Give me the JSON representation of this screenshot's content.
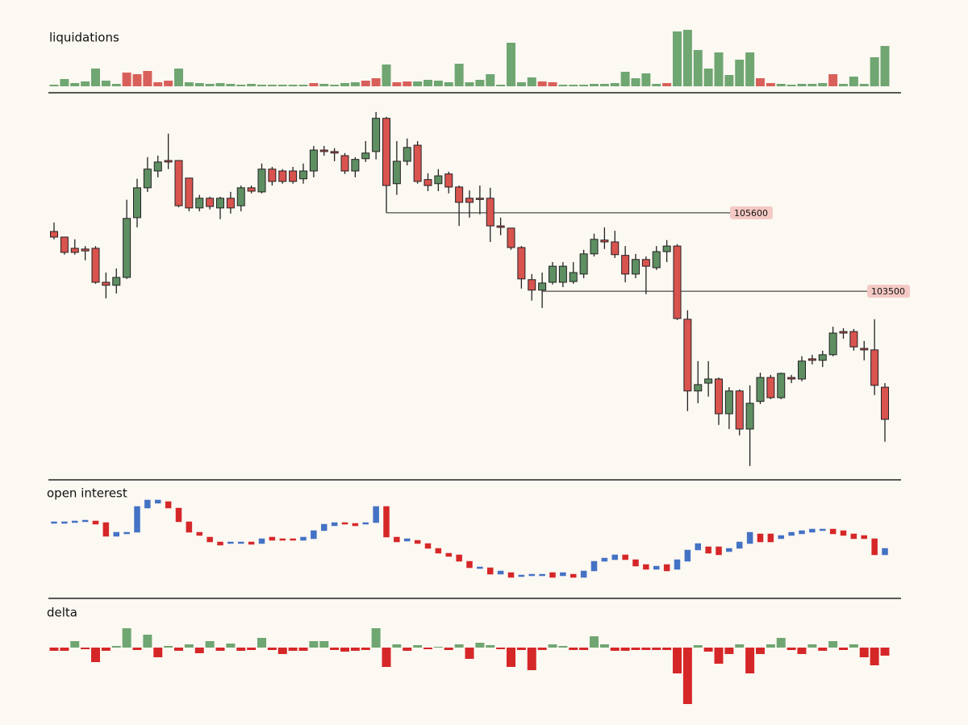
{
  "chart_data": [
    {
      "type": "bar",
      "title": "liquidations",
      "ylim": [
        0,
        70
      ],
      "values": [
        2,
        9,
        4,
        6,
        22,
        7,
        3,
        17,
        15,
        19,
        5,
        7,
        22,
        5,
        4,
        3,
        4,
        3,
        2,
        3,
        2,
        2,
        2,
        2,
        2,
        4,
        3,
        2,
        4,
        5,
        7,
        10,
        27,
        5,
        6,
        6,
        8,
        7,
        5,
        28,
        5,
        8,
        15,
        2,
        54,
        5,
        11,
        6,
        5,
        2,
        2,
        2,
        3,
        3,
        4,
        18,
        10,
        16,
        3,
        4,
        68,
        70,
        45,
        22,
        42,
        14,
        33,
        42,
        10,
        4,
        3,
        2,
        3,
        3,
        4,
        15,
        3,
        12,
        3,
        36,
        50
      ],
      "colors": [
        "#6fa672",
        "#6fa672",
        "#6fa672",
        "#6fa672",
        "#6fa672",
        "#6fa672",
        "#6fa672",
        "#d9605a",
        "#d9605a",
        "#d9605a",
        "#d9605a",
        "#d9605a",
        "#6fa672",
        "#6fa672",
        "#6fa672",
        "#6fa672",
        "#6fa672",
        "#6fa672",
        "#6fa672",
        "#6fa672",
        "#6fa672",
        "#6fa672",
        "#6fa672",
        "#6fa672",
        "#6fa672",
        "#d9605a",
        "#6fa672",
        "#6fa672",
        "#6fa672",
        "#6fa672",
        "#d9605a",
        "#d9605a",
        "#6fa672",
        "#d9605a",
        "#d9605a",
        "#6fa672",
        "#6fa672",
        "#6fa672",
        "#6fa672",
        "#6fa672",
        "#6fa672",
        "#6fa672",
        "#6fa672",
        "#6fa672",
        "#6fa672",
        "#6fa672",
        "#6fa672",
        "#d9605a",
        "#d9605a",
        "#6fa672",
        "#6fa672",
        "#6fa672",
        "#6fa672",
        "#6fa672",
        "#6fa672",
        "#6fa672",
        "#6fa672",
        "#6fa672",
        "#6fa672",
        "#d9605a",
        "#6fa672",
        "#6fa672",
        "#6fa672",
        "#6fa672",
        "#6fa672",
        "#6fa672",
        "#6fa672",
        "#6fa672",
        "#d9605a",
        "#d9605a",
        "#6fa672",
        "#6fa672",
        "#6fa672",
        "#6fa672",
        "#6fa672",
        "#d9605a",
        "#6fa672",
        "#6fa672",
        "#6fa672",
        "#6fa672",
        "#6fa672"
      ]
    },
    {
      "type": "candlestick",
      "ylim": [
        98450,
        108750
      ],
      "up_color": "#5e8f62",
      "down_color": "#d9534f",
      "levels": [
        105600,
        103500
      ],
      "open": [
        105100,
        104950,
        104650,
        104630,
        104650,
        103740,
        103660,
        103870,
        105470,
        106270,
        106720,
        107000,
        107000,
        106530,
        105730,
        105990,
        105730,
        105990,
        105790,
        106270,
        106160,
        106770,
        106720,
        106720,
        106510,
        106720,
        107280,
        107240,
        107130,
        106720,
        107050,
        107240,
        108130,
        106380,
        106980,
        107410,
        106490,
        106380,
        106640,
        106290,
        105990,
        105990,
        105990,
        105250,
        105190,
        104670,
        103810,
        103530,
        103740,
        103740,
        103760,
        103960,
        104500,
        104870,
        104820,
        104460,
        103960,
        104350,
        104130,
        104560,
        104710,
        102750,
        100830,
        101040,
        101150,
        100220,
        100830,
        99810,
        100550,
        101190,
        100650,
        101190,
        101150,
        101690,
        101650,
        101800,
        102420,
        102420,
        101970,
        101930,
        100930
      ],
      "high": [
        105340,
        104950,
        104890,
        104710,
        104710,
        104000,
        104110,
        105950,
        106510,
        107090,
        107130,
        107720,
        107000,
        106530,
        106080,
        106030,
        106030,
        106160,
        106330,
        106330,
        106920,
        106830,
        106770,
        106830,
        106920,
        107390,
        107390,
        107330,
        107200,
        107090,
        107520,
        108300,
        108170,
        107520,
        107590,
        107520,
        106660,
        106770,
        106700,
        106330,
        106200,
        106330,
        106270,
        105470,
        105190,
        104710,
        103960,
        104000,
        104280,
        104280,
        104280,
        104610,
        105040,
        105210,
        105120,
        104710,
        104500,
        104430,
        104710,
        104870,
        104760,
        102990,
        101630,
        101630,
        101190,
        100930,
        100870,
        100980,
        101320,
        101260,
        101320,
        101260,
        101760,
        101800,
        101910,
        102550,
        102510,
        102490,
        102170,
        102750,
        101040
      ],
      "low": [
        104890,
        104480,
        104480,
        104330,
        103700,
        103310,
        103440,
        103830,
        105210,
        106160,
        106550,
        106770,
        105750,
        105640,
        105640,
        105690,
        105430,
        105580,
        105640,
        106120,
        106120,
        106330,
        106380,
        106380,
        106380,
        106550,
        107130,
        106980,
        106640,
        106550,
        106960,
        107030,
        105600,
        106080,
        106870,
        106380,
        106180,
        106180,
        106120,
        105250,
        105470,
        105560,
        104820,
        105000,
        104610,
        103570,
        103250,
        103050,
        103680,
        103610,
        103700,
        103850,
        104430,
        104630,
        104390,
        103740,
        103850,
        103420,
        104070,
        104280,
        102730,
        100290,
        100500,
        100680,
        99920,
        99810,
        99640,
        98820,
        100480,
        100610,
        100610,
        101040,
        101090,
        101540,
        101470,
        101760,
        102230,
        101910,
        101650,
        100720,
        99470
      ],
      "close": [
        104950,
        104540,
        104540,
        104580,
        103740,
        103660,
        103870,
        105450,
        106270,
        106770,
        106960,
        106960,
        105790,
        105730,
        105990,
        105770,
        105990,
        105730,
        106270,
        106180,
        106770,
        106440,
        106440,
        106440,
        106720,
        107280,
        107240,
        107200,
        106720,
        107030,
        107200,
        108130,
        106330,
        106980,
        107350,
        106440,
        106330,
        106590,
        106290,
        105880,
        105880,
        105970,
        105250,
        105210,
        104670,
        103830,
        103530,
        103720,
        104170,
        104170,
        104000,
        104500,
        104890,
        104820,
        104480,
        103960,
        104350,
        104170,
        104560,
        104710,
        102770,
        100830,
        101000,
        101150,
        100220,
        100830,
        99810,
        100500,
        101190,
        100650,
        101300,
        101150,
        101630,
        101650,
        101800,
        102380,
        102380,
        102010,
        101930,
        100980,
        100070
      ]
    },
    {
      "type": "candlestick",
      "title": "open interest",
      "ylim": [
        20,
        160
      ],
      "up_color": "#4472c4",
      "down_color": "#d62728",
      "open": [
        111,
        111,
        112,
        113,
        114,
        112,
        95,
        98,
        100,
        130,
        136,
        138,
        130,
        113,
        100,
        94,
        88,
        86,
        86,
        88,
        86,
        94,
        92,
        92,
        90,
        92,
        102,
        108,
        112,
        111,
        110,
        112,
        132,
        94,
        89,
        90,
        86,
        80,
        74,
        72,
        64,
        55,
        56,
        48,
        50,
        45,
        46,
        46,
        50,
        46,
        48,
        44,
        52,
        64,
        66,
        72,
        66,
        60,
        54,
        60,
        54,
        64,
        78,
        82,
        82,
        76,
        80,
        86,
        98,
        98,
        92,
        96,
        98,
        100,
        102,
        104,
        102,
        98,
        96,
        92,
        72
      ],
      "close": [
        113,
        113,
        114,
        115,
        110,
        95,
        100,
        100,
        132,
        140,
        140,
        130,
        113,
        100,
        96,
        88,
        84,
        88,
        88,
        85,
        92,
        90,
        90,
        90,
        94,
        102,
        110,
        112,
        110,
        108,
        112,
        132,
        94,
        88,
        92,
        86,
        80,
        74,
        70,
        64,
        56,
        57,
        48,
        52,
        44,
        47,
        48,
        48,
        44,
        50,
        44,
        52,
        64,
        68,
        72,
        66,
        58,
        54,
        58,
        52,
        66,
        78,
        86,
        74,
        72,
        80,
        88,
        100,
        88,
        88,
        96,
        100,
        102,
        104,
        104,
        98,
        96,
        92,
        92,
        72,
        80
      ]
    },
    {
      "type": "bar",
      "title": "delta",
      "ylim": [
        -70,
        30
      ],
      "up_color": "#6fa672",
      "down_color": "#d62728",
      "values": [
        -4,
        -4,
        8,
        -2,
        -18,
        -4,
        2,
        24,
        -3,
        16,
        -12,
        2,
        -4,
        4,
        -7,
        8,
        -4,
        5,
        -4,
        -3,
        12,
        -3,
        -8,
        -4,
        -4,
        8,
        8,
        -3,
        -5,
        -4,
        -3,
        24,
        -24,
        4,
        -4,
        3,
        -2,
        1,
        -3,
        4,
        -14,
        6,
        3,
        -2,
        -24,
        -3,
        -28,
        -3,
        4,
        2,
        -3,
        -3,
        14,
        4,
        -4,
        -4,
        -3,
        -3,
        -3,
        -3,
        -32,
        -70,
        3,
        -5,
        -20,
        -8,
        4,
        -32,
        -8,
        4,
        12,
        -3,
        -8,
        4,
        -4,
        8,
        -3,
        4,
        -12,
        -22,
        -10
      ]
    }
  ]
}
